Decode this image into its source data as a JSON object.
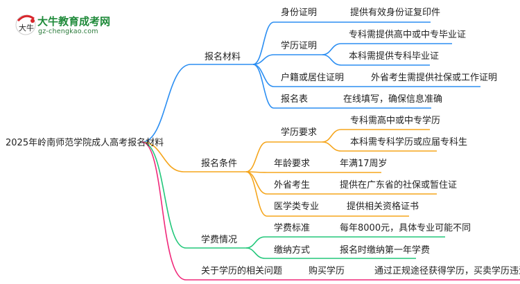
{
  "logo": {
    "title": "大牛教育成考网",
    "url": "gz-chengkao.com",
    "mark": "大牛"
  },
  "colors": {
    "materials": "#2b8ef2",
    "conditions": "#f5a51c",
    "fees": "#22c77a",
    "issues": "#f0287a"
  },
  "root": "2025年岭南师范学院成人高考报名材料",
  "branches": [
    {
      "label": "报名材料",
      "children": [
        {
          "label": "身份证明",
          "detail": "提供有效身份证复印件"
        },
        {
          "label": "学历证明",
          "details": [
            "专科需提供高中或中专毕业证",
            "本科需提供专科毕业证"
          ]
        },
        {
          "label": "户籍或居住证明",
          "detail": "外省考生需提供社保或工作证明"
        },
        {
          "label": "报名表",
          "detail": "在线填写，确保信息准确"
        }
      ]
    },
    {
      "label": "报名条件",
      "children": [
        {
          "label": "学历要求",
          "details": [
            "专科需高中或中专学历",
            "本科需专科学历或应届专科生"
          ]
        },
        {
          "label": "年龄要求",
          "detail": "年满17周岁"
        },
        {
          "label": "外省考生",
          "detail": "提供在广东省的社保或暂住证"
        },
        {
          "label": "医学类专业",
          "detail": "提供相关资格证书"
        }
      ]
    },
    {
      "label": "学费情况",
      "children": [
        {
          "label": "学费标准",
          "detail": "每年8000元，具体专业可能不同"
        },
        {
          "label": "缴纳方式",
          "detail": "报名时缴纳第一年学费"
        }
      ]
    },
    {
      "label": "关于学历的相关问题",
      "children": [
        {
          "label": "购买学历",
          "detail": "通过正规途径获得学历，买卖学历违法"
        }
      ]
    }
  ]
}
